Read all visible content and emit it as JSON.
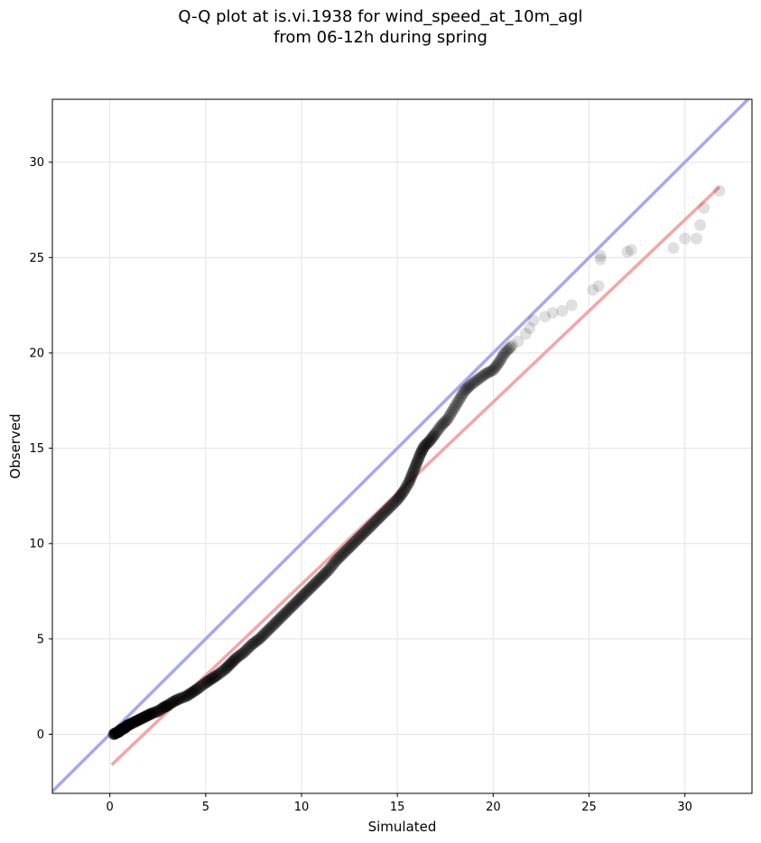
{
  "chart_data": {
    "type": "scatter",
    "title": "Q-Q plot at is.vi.1938 for wind_speed_at_10m_agl",
    "subtitle": "from 06-12h during spring",
    "xlabel": "Simulated",
    "ylabel": "Observed",
    "xlim": [
      -3.0,
      33.5
    ],
    "ylim": [
      -3.1,
      33.3
    ],
    "xticks": [
      0,
      5,
      10,
      15,
      20,
      25,
      30
    ],
    "yticks": [
      0,
      5,
      10,
      15,
      20,
      25,
      30
    ],
    "grid": true,
    "colors": {
      "points": "#000000",
      "identity_line": "#a7a7f0",
      "fit_line": "#f4a6a6",
      "grid": "#e8e8e8"
    },
    "identity_line": {
      "from": [
        -3.0,
        -3.0
      ],
      "to": [
        33.5,
        33.5
      ]
    },
    "fit_line": {
      "from": [
        0.1,
        -1.6
      ],
      "to": [
        31.8,
        28.7
      ]
    },
    "points": [
      [
        0.2,
        0.0
      ],
      [
        0.3,
        0.05
      ],
      [
        0.4,
        0.1
      ],
      [
        0.5,
        0.15
      ],
      [
        0.6,
        0.25
      ],
      [
        0.7,
        0.3
      ],
      [
        0.8,
        0.35
      ],
      [
        0.9,
        0.45
      ],
      [
        1.0,
        0.5
      ],
      [
        1.2,
        0.6
      ],
      [
        1.4,
        0.7
      ],
      [
        1.6,
        0.8
      ],
      [
        1.8,
        0.9
      ],
      [
        2.0,
        1.0
      ],
      [
        2.2,
        1.1
      ],
      [
        2.5,
        1.2
      ],
      [
        2.8,
        1.4
      ],
      [
        3.0,
        1.5
      ],
      [
        3.3,
        1.7
      ],
      [
        3.6,
        1.85
      ],
      [
        4.0,
        2.0
      ],
      [
        4.3,
        2.2
      ],
      [
        4.6,
        2.4
      ],
      [
        5.0,
        2.7
      ],
      [
        5.3,
        2.9
      ],
      [
        5.6,
        3.1
      ],
      [
        6.0,
        3.4
      ],
      [
        6.3,
        3.7
      ],
      [
        6.6,
        4.0
      ],
      [
        7.0,
        4.3
      ],
      [
        7.4,
        4.7
      ],
      [
        7.8,
        5.0
      ],
      [
        8.2,
        5.4
      ],
      [
        8.6,
        5.8
      ],
      [
        9.0,
        6.2
      ],
      [
        9.4,
        6.6
      ],
      [
        9.8,
        7.0
      ],
      [
        10.2,
        7.4
      ],
      [
        10.6,
        7.8
      ],
      [
        11.0,
        8.2
      ],
      [
        11.4,
        8.6
      ],
      [
        11.8,
        9.1
      ],
      [
        12.2,
        9.5
      ],
      [
        12.6,
        9.9
      ],
      [
        13.0,
        10.3
      ],
      [
        13.4,
        10.7
      ],
      [
        13.8,
        11.1
      ],
      [
        14.2,
        11.5
      ],
      [
        14.6,
        11.9
      ],
      [
        15.0,
        12.3
      ],
      [
        15.3,
        12.7
      ],
      [
        15.6,
        13.2
      ],
      [
        15.8,
        13.7
      ],
      [
        16.0,
        14.2
      ],
      [
        16.2,
        14.7
      ],
      [
        16.4,
        15.1
      ],
      [
        16.7,
        15.4
      ],
      [
        17.0,
        15.8
      ],
      [
        17.3,
        16.2
      ],
      [
        17.6,
        16.5
      ],
      [
        17.9,
        17.0
      ],
      [
        18.2,
        17.5
      ],
      [
        18.5,
        18.0
      ],
      [
        18.8,
        18.3
      ],
      [
        19.2,
        18.6
      ],
      [
        19.6,
        18.9
      ],
      [
        20.0,
        19.1
      ],
      [
        20.3,
        19.5
      ],
      [
        20.6,
        20.0
      ],
      [
        21.0,
        20.4
      ],
      [
        21.3,
        20.6
      ],
      [
        21.7,
        21.0
      ],
      [
        21.9,
        21.3
      ],
      [
        22.1,
        21.7
      ],
      [
        22.7,
        21.9
      ],
      [
        23.1,
        22.1
      ],
      [
        23.6,
        22.2
      ],
      [
        24.1,
        22.5
      ],
      [
        25.2,
        23.3
      ],
      [
        25.5,
        23.5
      ],
      [
        25.6,
        24.9
      ],
      [
        25.6,
        25.1
      ],
      [
        27.0,
        25.3
      ],
      [
        27.2,
        25.4
      ],
      [
        29.4,
        25.5
      ],
      [
        30.0,
        26.0
      ],
      [
        30.6,
        26.0
      ],
      [
        30.8,
        26.7
      ],
      [
        31.0,
        27.6
      ],
      [
        31.8,
        28.5
      ]
    ]
  }
}
